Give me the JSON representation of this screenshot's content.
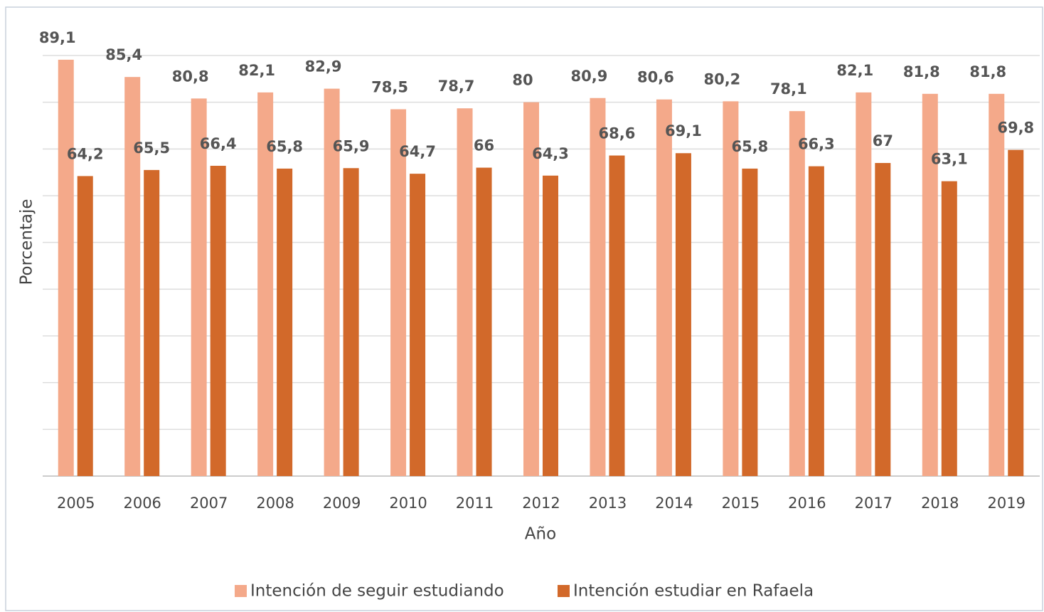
{
  "chart_data": {
    "type": "bar",
    "x_label": "Año",
    "y_label": "Porcentaje",
    "categories": [
      "2005",
      "2006",
      "2007",
      "2008",
      "2009",
      "2010",
      "2011",
      "2012",
      "2013",
      "2014",
      "2015",
      "2016",
      "2017",
      "2018",
      "2019"
    ],
    "series": [
      {
        "name": "Intención de seguir estudiando",
        "color": "#f4a98a",
        "values": [
          89.1,
          85.4,
          80.8,
          82.1,
          82.9,
          78.5,
          78.7,
          80,
          80.9,
          80.6,
          80.2,
          78.1,
          82.1,
          81.8,
          81.8
        ],
        "value_labels": [
          "89,1",
          "85,4",
          "80,8",
          "82,1",
          "82,9",
          "78,5",
          "78,7",
          "80",
          "80,9",
          "80,6",
          "80,2",
          "78,1",
          "82,1",
          "81,8",
          "81,8"
        ]
      },
      {
        "name": "Intención estudiar en Rafaela",
        "color": "#d2692a",
        "values": [
          64.2,
          65.5,
          66.4,
          65.8,
          65.9,
          64.7,
          66,
          64.3,
          68.6,
          69.1,
          65.8,
          66.3,
          67,
          63.1,
          69.8
        ],
        "value_labels": [
          "64,2",
          "65,5",
          "66,4",
          "65,8",
          "65,9",
          "64,7",
          "66",
          "64,3",
          "68,6",
          "69,1",
          "65,8",
          "66,3",
          "67",
          "63,1",
          "69,8"
        ]
      }
    ],
    "ylim": [
      0,
      90
    ],
    "yticks": [
      0,
      10,
      20,
      30,
      40,
      50,
      60,
      70,
      80,
      90
    ],
    "grid": true,
    "legend": "bottom"
  }
}
